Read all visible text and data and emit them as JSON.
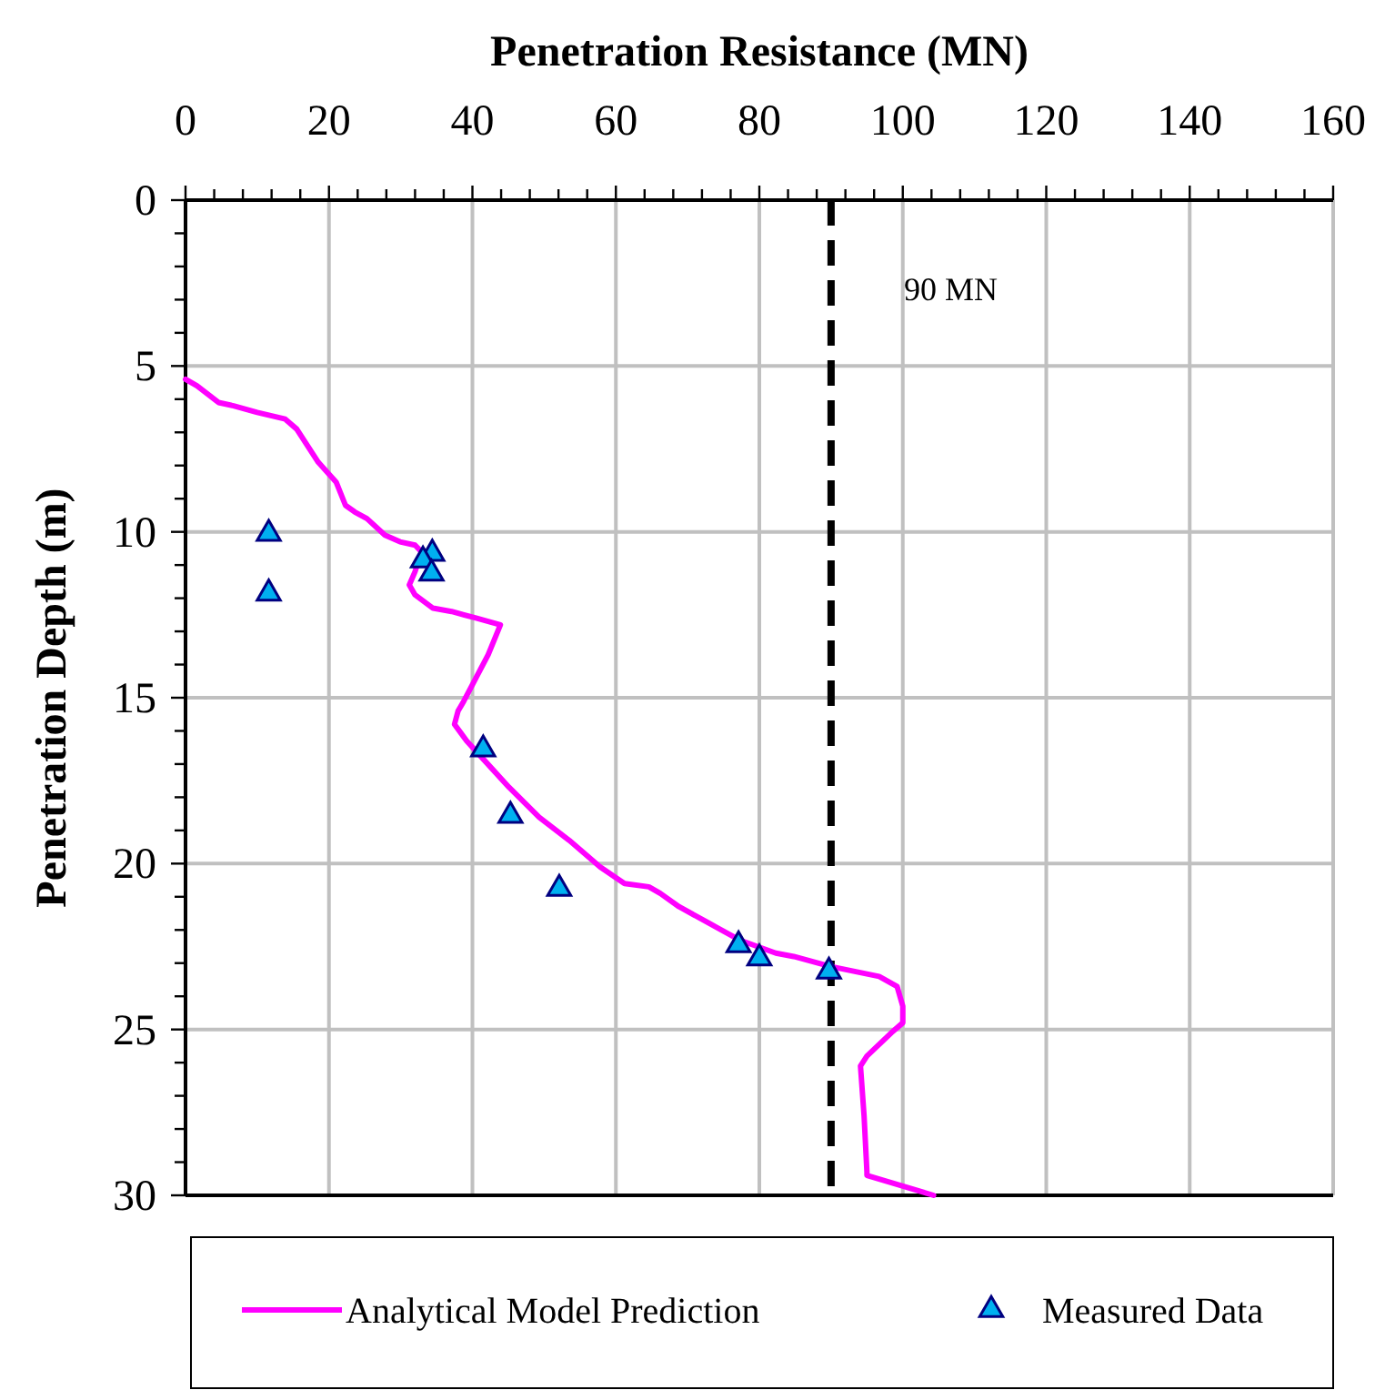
{
  "chart_data": {
    "type": "line",
    "xlabel": "Penetration Resistance (MN)",
    "ylabel": "Penetration Depth (m)",
    "xlim": [
      0,
      160
    ],
    "ylim": [
      30,
      0
    ],
    "xticks": [
      0,
      {
        "value": 4,
        "label": null
      },
      {
        "value": 8,
        "label": null
      },
      {
        "value": 12,
        "label": null
      },
      {
        "value": 16,
        "label": null
      },
      20,
      {
        "value": 24,
        "label": null
      },
      {
        "value": 28,
        "label": null
      },
      {
        "value": 32,
        "label": null
      },
      {
        "value": 36,
        "label": null
      },
      40,
      {
        "value": 44,
        "label": null
      },
      {
        "value": 48,
        "label": null
      },
      {
        "value": 52,
        "label": null
      },
      {
        "value": 56,
        "label": null
      },
      60,
      {
        "value": 64,
        "label": null
      },
      {
        "value": 68,
        "label": null
      },
      {
        "value": 72,
        "label": null
      },
      {
        "value": 76,
        "label": null
      },
      80,
      {
        "value": 84,
        "label": null
      },
      {
        "value": 88,
        "label": null
      },
      {
        "value": 92,
        "label": null
      },
      {
        "value": 96,
        "label": null
      },
      100,
      {
        "value": 104,
        "label": null
      },
      {
        "value": 108,
        "label": null
      },
      {
        "value": 112,
        "label": null
      },
      {
        "value": 116,
        "label": null
      },
      120,
      {
        "value": 124,
        "label": null
      },
      {
        "value": 128,
        "label": null
      },
      {
        "value": 132,
        "label": null
      },
      {
        "value": 136,
        "label": null
      },
      140,
      {
        "value": 144,
        "label": null
      },
      {
        "value": 148,
        "label": null
      },
      {
        "value": 152,
        "label": null
      },
      {
        "value": 156,
        "label": null
      },
      160
    ],
    "yticks": [
      0,
      {
        "value": 1,
        "label": null
      },
      {
        "value": 2,
        "label": null
      },
      {
        "value": 3,
        "label": null
      },
      {
        "value": 4,
        "label": null
      },
      5,
      {
        "value": 6,
        "label": null
      },
      {
        "value": 7,
        "label": null
      },
      {
        "value": 8,
        "label": null
      },
      {
        "value": 9,
        "label": null
      },
      10,
      {
        "value": 11,
        "label": null
      },
      {
        "value": 12,
        "label": null
      },
      {
        "value": 13,
        "label": null
      },
      {
        "value": 14,
        "label": null
      },
      15,
      {
        "value": 16,
        "label": null
      },
      {
        "value": 17,
        "label": null
      },
      {
        "value": 18,
        "label": null
      },
      {
        "value": 19,
        "label": null
      },
      20,
      {
        "value": 21,
        "label": null
      },
      {
        "value": 22,
        "label": null
      },
      {
        "value": 23,
        "label": null
      },
      {
        "value": 24,
        "label": null
      },
      25,
      {
        "value": 26,
        "label": null
      },
      {
        "value": 27,
        "label": null
      },
      {
        "value": 28,
        "label": null
      },
      {
        "value": 29,
        "label": null
      },
      30
    ],
    "grid": true,
    "legend": "bottom",
    "series": [
      {
        "name": "Analytical Model Prediction",
        "color": "#ff00ff",
        "marker": "none",
        "line_style": "solid",
        "x": [
          0,
          1.6,
          4.6,
          6.7,
          10,
          13.9,
          15.5,
          18.5,
          21,
          22.3,
          23.6,
          25.3,
          27.8,
          29.9,
          32,
          32.9,
          32,
          31.2,
          32,
          34.5,
          37.1,
          40.5,
          43.9,
          42.2,
          40.5,
          38.8,
          38,
          37.5,
          39.2,
          41.3,
          45.1,
          49.3,
          53.5,
          57.8,
          61.2,
          64.6,
          66.2,
          68.8,
          73,
          77.2,
          82.3,
          84.8,
          89.9,
          96.7,
          99.2,
          100,
          100,
          98.4,
          95,
          94.1,
          94.6,
          95,
          95,
          104.3
        ],
        "values": [
          5.4,
          5.6,
          6.1,
          6.2,
          6.4,
          6.6,
          6.9,
          7.9,
          8.5,
          9.2,
          9.4,
          9.6,
          10.1,
          10.3,
          10.4,
          10.6,
          11.2,
          11.6,
          11.9,
          12.3,
          12.4,
          12.6,
          12.8,
          13.7,
          14.4,
          15.1,
          15.4,
          15.8,
          16.3,
          16.8,
          17.7,
          18.6,
          19.3,
          20.1,
          20.6,
          20.7,
          20.9,
          21.3,
          21.8,
          22.3,
          22.7,
          22.8,
          23.1,
          23.4,
          23.7,
          24.3,
          24.8,
          25.1,
          25.8,
          26.1,
          27.6,
          29.3,
          29.4,
          30
        ]
      },
      {
        "name": "Measured Data",
        "type": "scatter",
        "color": "#00b0f0",
        "marker": "triangle",
        "x": [
          11.6,
          11.6,
          34.4,
          33.1,
          34.3,
          41.5,
          45.3,
          52.1,
          77.1,
          80,
          89.7
        ],
        "values": [
          10,
          11.8,
          10.6,
          10.8,
          11.2,
          16.5,
          18.5,
          20.7,
          22.4,
          22.8,
          23.2
        ]
      }
    ],
    "ref_lines": [
      {
        "axis": "x",
        "value": 90,
        "label": "90 MN",
        "color": "#000000",
        "line_style": "dashed"
      }
    ]
  }
}
